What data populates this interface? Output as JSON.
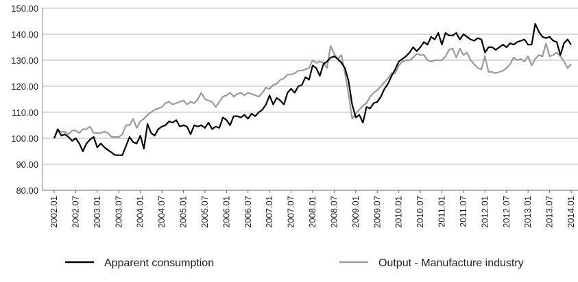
{
  "chart_data": {
    "type": "line",
    "categories": [
      "2002.01",
      null,
      null,
      null,
      null,
      null,
      "2002.07",
      null,
      null,
      null,
      null,
      null,
      "2003.01",
      null,
      null,
      null,
      null,
      null,
      "2003.07",
      null,
      null,
      null,
      null,
      null,
      "2004.01",
      null,
      null,
      null,
      null,
      null,
      "2004.07",
      null,
      null,
      null,
      null,
      null,
      "2005.01",
      null,
      null,
      null,
      null,
      null,
      "2005.07",
      null,
      null,
      null,
      null,
      null,
      "2006.01",
      null,
      null,
      null,
      null,
      null,
      "2006.07",
      null,
      null,
      null,
      null,
      null,
      "2007.01",
      null,
      null,
      null,
      null,
      null,
      "2007.07",
      null,
      null,
      null,
      null,
      null,
      "2008.01",
      null,
      null,
      null,
      null,
      null,
      "2008.07",
      null,
      null,
      null,
      null,
      null,
      "2009.01",
      null,
      null,
      null,
      null,
      null,
      "2009.07",
      null,
      null,
      null,
      null,
      null,
      "2010.01",
      null,
      null,
      null,
      null,
      null,
      "2010.07",
      null,
      null,
      null,
      null,
      null,
      "2011.01",
      null,
      null,
      null,
      null,
      null,
      "2011.07",
      null,
      null,
      null,
      null,
      null,
      "2012.01",
      null,
      null,
      null,
      null,
      null,
      "2012.07",
      null,
      null,
      null,
      null,
      null,
      "2013.01",
      null,
      null,
      null,
      null,
      null,
      "2013.07",
      null,
      null,
      null,
      null,
      null,
      "2014.01"
    ],
    "series": [
      {
        "name": "Apparent consumption",
        "color": "#000000",
        "values": [
          100,
          103.5,
          101,
          101.5,
          100.5,
          99,
          100,
          98,
          95,
          98,
          99.5,
          100.5,
          96.5,
          98,
          96.5,
          95.5,
          94.5,
          93.5,
          93.5,
          93.5,
          97,
          100.5,
          98.5,
          98,
          101,
          96,
          105.5,
          102,
          101,
          103.5,
          104.5,
          105,
          106.5,
          106,
          107,
          104.5,
          105,
          104.5,
          101.5,
          105,
          104.5,
          105,
          104,
          106,
          103.5,
          104.5,
          104,
          108,
          107,
          105,
          108.5,
          108.5,
          108,
          109,
          107.5,
          109.5,
          108.5,
          110,
          111,
          113,
          116.5,
          113,
          115.5,
          114.5,
          113,
          117.5,
          119,
          117.5,
          120,
          120.5,
          123.5,
          122.5,
          128,
          127,
          124,
          128.5,
          129.5,
          131,
          131.5,
          130.5,
          129,
          127,
          122,
          113,
          108,
          109,
          106,
          112,
          111.5,
          113.5,
          114,
          116,
          119,
          121,
          124,
          126.5,
          129.5,
          130.5,
          131.5,
          133,
          135,
          133.5,
          135,
          137,
          136,
          139,
          138,
          140.5,
          136,
          140.5,
          139.5,
          139.5,
          140.5,
          138,
          140,
          139,
          138,
          137.5,
          138.5,
          138,
          133,
          135,
          135,
          134,
          135,
          136,
          135,
          136.5,
          136,
          137,
          137.5,
          138,
          136,
          136,
          144,
          141,
          139,
          138.5,
          139,
          137.5,
          137,
          132,
          136.5,
          138,
          136
        ]
      },
      {
        "name": "Output - Manufacture industry",
        "color": "#9a9a9a",
        "values": [
          100,
          103,
          102.5,
          102.5,
          101.5,
          103,
          103,
          102,
          103.5,
          103.5,
          104.5,
          102,
          102,
          102,
          102.5,
          102,
          100.5,
          100.5,
          100.5,
          101.5,
          105,
          105,
          107.5,
          104,
          106.5,
          107.5,
          109,
          110,
          111,
          111.5,
          112,
          113.5,
          114,
          113,
          113.5,
          114,
          114.5,
          113,
          114,
          113.5,
          115,
          117.5,
          115,
          114.5,
          114,
          112,
          114,
          116,
          116.5,
          117.5,
          116,
          117,
          117.5,
          116.5,
          117.5,
          117,
          116.5,
          116,
          117.5,
          119.5,
          119,
          120.5,
          121,
          122.5,
          123,
          124.5,
          124.5,
          125,
          126,
          126,
          126.5,
          127,
          130,
          129,
          129.5,
          129,
          127,
          135.5,
          132.5,
          130.5,
          132,
          125,
          117,
          107.5,
          109.5,
          111,
          112.5,
          113.5,
          116,
          117.5,
          118.5,
          120,
          121.5,
          123,
          125,
          125,
          128,
          129.5,
          130,
          130,
          131,
          132.5,
          132,
          132,
          130,
          129.5,
          130,
          130,
          130,
          131.5,
          134,
          134.5,
          131,
          134.5,
          132,
          133,
          130,
          128.5,
          127,
          126.5,
          131.5,
          125.5,
          125.5,
          125,
          125.5,
          126,
          127,
          128.5,
          131,
          130,
          130.5,
          129.5,
          131.5,
          128,
          130.5,
          132,
          131.5,
          136.5,
          131.5,
          132,
          133,
          131.5,
          129.5,
          127,
          128.5
        ]
      }
    ],
    "ylim": [
      80,
      150
    ],
    "yticks": [
      {
        "value": 80,
        "label": "80.00"
      },
      {
        "value": 90,
        "label": "90.00"
      },
      {
        "value": 100,
        "label": "100.00"
      },
      {
        "value": 110,
        "label": "110.00"
      },
      {
        "value": 120,
        "label": "120.00"
      },
      {
        "value": 130,
        "label": "130.00"
      },
      {
        "value": 140,
        "label": "140.00"
      },
      {
        "value": 150,
        "label": "150.00"
      }
    ],
    "grid": true,
    "legend": "bottom"
  }
}
